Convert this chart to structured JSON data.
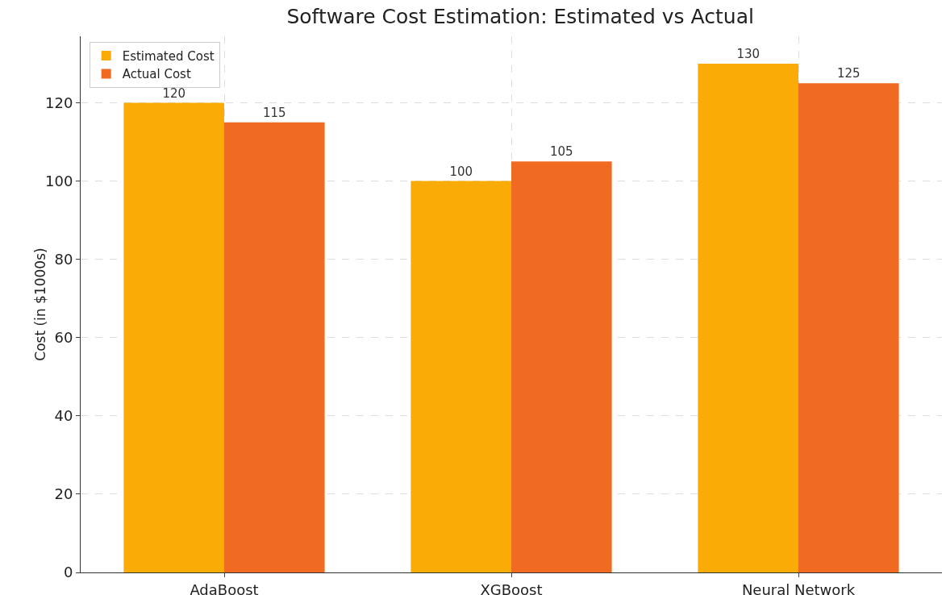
{
  "chart_data": {
    "type": "bar",
    "title": "Software Cost Estimation: Estimated vs Actual",
    "ylabel": "Cost (in $1000s)",
    "categories": [
      "AdaBoost",
      "XGBoost",
      "Neural Network"
    ],
    "series": [
      {
        "name": "Estimated Cost",
        "color": "#fbab06",
        "values": [
          120,
          100,
          130
        ]
      },
      {
        "name": "Actual Cost",
        "color": "#f06a22",
        "values": [
          115,
          105,
          125
        ]
      }
    ],
    "ylim": [
      0,
      137
    ],
    "yticks": [
      0,
      20,
      40,
      60,
      80,
      100,
      120
    ],
    "grid": true,
    "legend": "top left",
    "data_labels": true
  }
}
